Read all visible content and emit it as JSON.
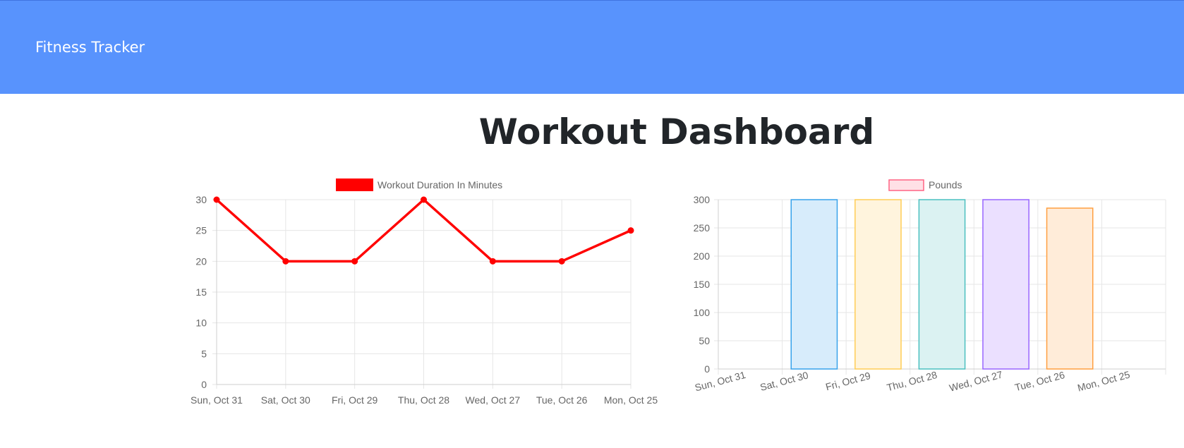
{
  "navbar": {
    "brand": "Fitness Tracker",
    "color": "#5893fd"
  },
  "page": {
    "title": "Workout Dashboard"
  },
  "chart_data": [
    {
      "type": "line",
      "x": [
        "Sun, Oct 31",
        "Sat, Oct 30",
        "Fri, Oct 29",
        "Thu, Oct 28",
        "Wed, Oct 27",
        "Tue, Oct 26",
        "Mon, Oct 25"
      ],
      "series": [
        {
          "name": "Workout Duration In Minutes",
          "values": [
            30,
            20,
            20,
            30,
            20,
            20,
            25
          ],
          "color": "#ff0000"
        }
      ],
      "ylim": [
        0,
        30
      ],
      "yticks": [
        0,
        5,
        10,
        15,
        20,
        25,
        30
      ],
      "grid": true,
      "legend": "top-center"
    },
    {
      "type": "bar",
      "categories": [
        "Sun, Oct 31",
        "Sat, Oct 30",
        "Fri, Oct 29",
        "Thu, Oct 28",
        "Wed, Oct 27",
        "Tue, Oct 26",
        "Mon, Oct 25"
      ],
      "series": [
        {
          "name": "Pounds",
          "values": [
            0,
            300,
            300,
            300,
            300,
            285,
            0
          ],
          "color": "#ff6384"
        }
      ],
      "bar_fills": [
        "#ffe0e6",
        "#d7ecfb",
        "#fff4dd",
        "#dbf2f2",
        "#ebe0ff",
        "#ffecd9",
        "#f4f5f5"
      ],
      "bar_strokes": [
        "#ff6384",
        "#36a2eb",
        "#ffcd56",
        "#4bc0c0",
        "#9966ff",
        "#ff9f40",
        "#c9cbcf"
      ],
      "ylim": [
        0,
        300
      ],
      "yticks": [
        0,
        50,
        100,
        150,
        200,
        250,
        300
      ],
      "grid": true,
      "legend": "top-center"
    }
  ]
}
